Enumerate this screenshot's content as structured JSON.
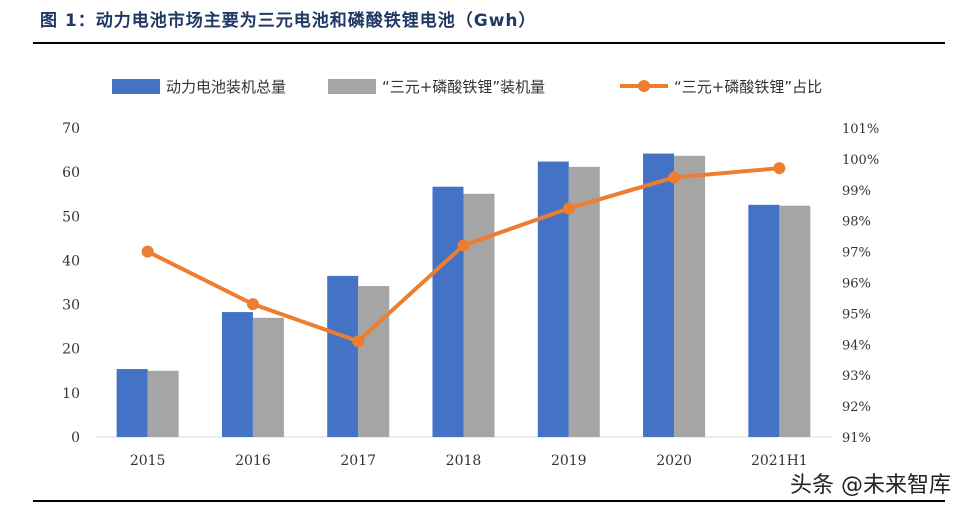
{
  "header": {
    "title": "图 1：动力电池市场主要为三元电池和磷酸铁锂电池（Gwh）"
  },
  "watermark": "头条 @未来智库",
  "chart_data": {
    "type": "bar+line",
    "title": "图 1：动力电池市场主要为三元电池和磷酸铁锂电池（Gwh）",
    "categories": [
      "2015",
      "2016",
      "2017",
      "2018",
      "2019",
      "2020",
      "2021H1"
    ],
    "series": [
      {
        "name": "动力电池装机总量",
        "type": "bar",
        "axis": "left",
        "color": "#4472c4",
        "values": [
          15.4,
          28.3,
          36.5,
          56.7,
          62.4,
          64.2,
          52.6
        ]
      },
      {
        "name": "“三元+磷酸铁锂”装机量",
        "type": "bar",
        "axis": "left",
        "color": "#a5a5a5",
        "values": [
          15.0,
          27.0,
          34.2,
          55.1,
          61.2,
          63.7,
          52.4
        ]
      },
      {
        "name": "“三元+磷酸铁锂”占比",
        "type": "line",
        "axis": "right",
        "color": "#ed7d31",
        "values": [
          97.0,
          95.3,
          94.1,
          97.2,
          98.4,
          99.4,
          99.7
        ]
      }
    ],
    "ylim_left": [
      0,
      70
    ],
    "yticks_left": [
      "0",
      "10",
      "20",
      "30",
      "40",
      "50",
      "60",
      "70"
    ],
    "ylim_right": [
      91,
      101
    ],
    "yticks_right": [
      "91%",
      "92%",
      "93%",
      "94%",
      "95%",
      "96%",
      "97%",
      "98%",
      "99%",
      "100%",
      "101%"
    ],
    "legend": "top",
    "grid": false
  }
}
